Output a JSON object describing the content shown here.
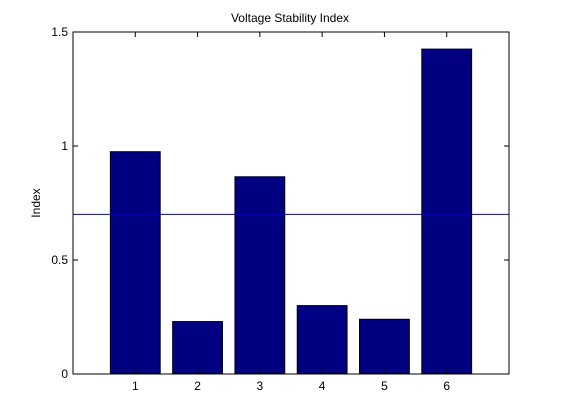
{
  "chart_data": {
    "type": "bar",
    "title": "Voltage Stability Index",
    "xlabel": "",
    "ylabel": "Index",
    "categories": [
      "1",
      "2",
      "3",
      "4",
      "5",
      "6"
    ],
    "values": [
      0.975,
      0.23,
      0.865,
      0.3,
      0.24,
      1.425
    ],
    "xlim": [
      0,
      7
    ],
    "ylim": [
      0,
      1.5
    ],
    "yticks": [
      0,
      0.5,
      1,
      1.5
    ],
    "ytick_labels": [
      "0",
      "0.5",
      "1",
      "1.5"
    ],
    "reference_line": {
      "y": 0.7,
      "color": "#0000cc"
    },
    "bar_color": "#000080",
    "grid": false,
    "legend": "none"
  }
}
